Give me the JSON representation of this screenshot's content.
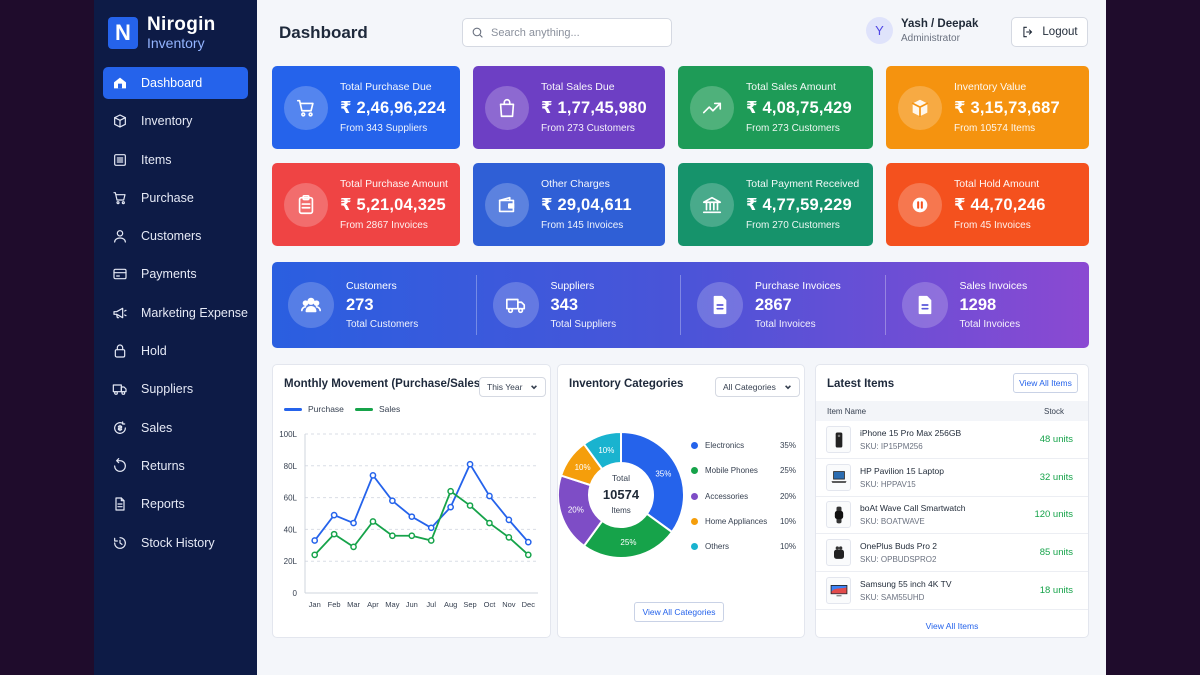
{
  "brand": {
    "name": "Nirogin",
    "sub": "Inventory",
    "logo_letter": "N"
  },
  "sidebar": {
    "items": [
      {
        "label": "Dashboard",
        "icon": "dashboard-icon",
        "active": true
      },
      {
        "label": "Inventory",
        "icon": "box-icon"
      },
      {
        "label": "Items",
        "icon": "list-icon"
      },
      {
        "label": "Purchase",
        "icon": "cart-icon"
      },
      {
        "label": "Customers",
        "icon": "user-icon"
      },
      {
        "label": "Payments",
        "icon": "card-icon"
      },
      {
        "label": "Marketing Expense",
        "icon": "megaphone-icon"
      },
      {
        "label": "Hold",
        "icon": "lock-icon"
      },
      {
        "label": "Suppliers",
        "icon": "truck-icon"
      },
      {
        "label": "Sales",
        "icon": "sales-icon"
      },
      {
        "label": "Returns",
        "icon": "return-icon"
      },
      {
        "label": "Reports",
        "icon": "report-icon"
      },
      {
        "label": "Stock History",
        "icon": "history-icon"
      }
    ]
  },
  "header": {
    "title": "Dashboard",
    "search_placeholder": "Search anything...",
    "user_initial": "Y",
    "user_name": "Yash / Deepak",
    "user_role": "Administrator",
    "logout_label": "Logout"
  },
  "cards": [
    {
      "label": "Total Purchase Due",
      "value": "₹ 2,46,96,224",
      "sub": "From 343 Suppliers",
      "color": "#2563eb",
      "icon": "cart-icon"
    },
    {
      "label": "Total Sales Due",
      "value": "₹ 1,77,45,980",
      "sub": "From 273 Customers",
      "color": "#6d3fc4",
      "icon": "bag-icon"
    },
    {
      "label": "Total Sales Amount",
      "value": "₹ 4,08,75,429",
      "sub": "From 273 Customers",
      "color": "#1e9b57",
      "icon": "trend-icon"
    },
    {
      "label": "Inventory Value",
      "value": "₹ 3,15,73,687",
      "sub": "From 10574 Items",
      "color": "#f5930f",
      "icon": "cube-icon"
    },
    {
      "label": "Total Purchase Amount",
      "value": "₹ 5,21,04,325",
      "sub": "From 2867 Invoices",
      "color": "#ef4444",
      "icon": "clipboard-icon"
    },
    {
      "label": "Other Charges",
      "value": "₹ 29,04,611",
      "sub": "From 145 Invoices",
      "color": "#2f5fd6",
      "icon": "wallet-icon"
    },
    {
      "label": "Total Payment Received",
      "value": "₹ 4,77,59,229",
      "sub": "From 270 Customers",
      "color": "#16936b",
      "icon": "bank-icon"
    },
    {
      "label": "Total Hold Amount",
      "value": "₹ 44,70,246",
      "sub": "From 45 Invoices",
      "color": "#f4511e",
      "icon": "pause-icon"
    }
  ],
  "stats": [
    {
      "label": "Customers",
      "value": "273",
      "sub": "Total Customers",
      "icon": "users-icon"
    },
    {
      "label": "Suppliers",
      "value": "343",
      "sub": "Total Suppliers",
      "icon": "truck-icon"
    },
    {
      "label": "Purchase Invoices",
      "value": "2867",
      "sub": "Total Invoices",
      "icon": "document-icon"
    },
    {
      "label": "Sales Invoices",
      "value": "1298",
      "sub": "Total Invoices",
      "icon": "document-icon"
    }
  ],
  "monthly": {
    "title": "Monthly Movement (Purchase/Sales)",
    "filter": "This Year",
    "legend": [
      "Purchase",
      "Sales"
    ]
  },
  "categories": {
    "title": "Inventory Categories",
    "filter": "All Categories",
    "center_label": "Total",
    "center_value": "10574",
    "center_sub": "Items",
    "button": "View All Categories"
  },
  "latest": {
    "title": "Latest Items",
    "button_top": "View All Items",
    "col_name": "Item Name",
    "col_stock": "Stock",
    "button_bottom": "View All Items",
    "items": [
      {
        "name": "iPhone 15 Pro Max 256GB",
        "sku": "SKU: IP15PM256",
        "stock": "48 units",
        "icon": "phone-icon"
      },
      {
        "name": "HP Pavilion 15 Laptop",
        "sku": "SKU: HPPAV15",
        "stock": "32 units",
        "icon": "laptop-icon"
      },
      {
        "name": "boAt Wave Call Smartwatch",
        "sku": "SKU: BOATWAVE",
        "stock": "120 units",
        "icon": "watch-icon"
      },
      {
        "name": "OnePlus Buds Pro 2",
        "sku": "SKU: OPBUDSPRO2",
        "stock": "85 units",
        "icon": "earbuds-icon"
      },
      {
        "name": "Samsung 55 inch 4K TV",
        "sku": "SKU: SAM55UHD",
        "stock": "18 units",
        "icon": "tv-icon"
      }
    ]
  },
  "chart_data": [
    {
      "type": "line",
      "title": "Monthly Movement (Purchase/Sales)",
      "categories": [
        "Jan",
        "Feb",
        "Mar",
        "Apr",
        "May",
        "Jun",
        "Jul",
        "Aug",
        "Sep",
        "Oct",
        "Nov",
        "Dec"
      ],
      "yticks": [
        "0",
        "20L",
        "40L",
        "60L",
        "80L",
        "100L"
      ],
      "ylim": [
        0,
        100
      ],
      "series": [
        {
          "name": "Purchase",
          "color": "#2563eb",
          "values": [
            33,
            49,
            44,
            74,
            58,
            48,
            41,
            54,
            81,
            61,
            46,
            32
          ]
        },
        {
          "name": "Sales",
          "color": "#16a34a",
          "values": [
            24,
            37,
            29,
            45,
            36,
            36,
            33,
            64,
            55,
            44,
            35,
            24
          ]
        }
      ],
      "grid": true,
      "legend": "top-left"
    },
    {
      "type": "pie",
      "title": "Inventory Categories",
      "labels": [
        "Electronics",
        "Mobile Phones",
        "Accessories",
        "Home Appliances",
        "Others"
      ],
      "values": [
        35,
        25,
        20,
        10,
        10
      ],
      "value_labels": [
        "35%",
        "25%",
        "20%",
        "10%",
        "10%"
      ],
      "colors": [
        "#2563eb",
        "#16a34a",
        "#7e4dc6",
        "#f59e0b",
        "#19b3cf"
      ],
      "legend": "right"
    }
  ]
}
